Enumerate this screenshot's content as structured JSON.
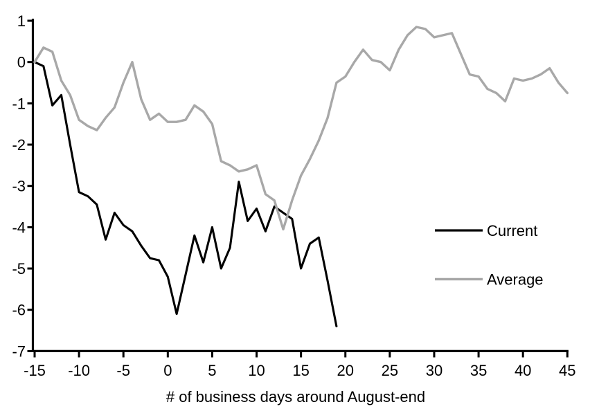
{
  "chart_data": {
    "type": "line",
    "title": "",
    "xlabel": "# of business days around August-end",
    "ylabel": "",
    "xlim": [
      -15,
      45
    ],
    "ylim": [
      -7,
      1
    ],
    "xticks": [
      -15,
      -10,
      -5,
      0,
      5,
      10,
      15,
      20,
      25,
      30,
      35,
      40,
      45
    ],
    "yticks": [
      1,
      0,
      -1,
      -2,
      -3,
      -4,
      -5,
      -6,
      -7
    ],
    "grid": false,
    "legend_position": "middle-right",
    "colors": {
      "current": "#000000",
      "average": "#a8a8a8",
      "axis": "#000000",
      "background": "#ffffff"
    },
    "series": [
      {
        "name": "Current",
        "color_key": "current",
        "x": [
          -15,
          -14,
          -13,
          -12,
          -11,
          -10,
          -9,
          -8,
          -7,
          -6,
          -5,
          -4,
          -3,
          -2,
          -1,
          0,
          1,
          2,
          3,
          4,
          5,
          6,
          7,
          8,
          9,
          10,
          11,
          12,
          13,
          14,
          15,
          16,
          17,
          18,
          19
        ],
        "values": [
          0.0,
          -0.1,
          -1.05,
          -0.8,
          -2.0,
          -3.15,
          -3.25,
          -3.45,
          -4.3,
          -3.65,
          -3.95,
          -4.1,
          -4.45,
          -4.75,
          -4.8,
          -5.2,
          -6.1,
          -5.15,
          -4.2,
          -4.85,
          -4.0,
          -5.0,
          -4.5,
          -2.9,
          -3.85,
          -3.55,
          -4.1,
          -3.5,
          -3.65,
          -3.8,
          -5.0,
          -4.4,
          -4.25,
          -5.3,
          -6.4
        ]
      },
      {
        "name": "Average",
        "color_key": "average",
        "x": [
          -15,
          -14,
          -13,
          -12,
          -11,
          -10,
          -9,
          -8,
          -7,
          -6,
          -5,
          -4,
          -3,
          -2,
          -1,
          0,
          1,
          2,
          3,
          4,
          5,
          6,
          7,
          8,
          9,
          10,
          11,
          12,
          13,
          14,
          15,
          16,
          17,
          18,
          19,
          20,
          21,
          22,
          23,
          24,
          25,
          26,
          27,
          28,
          29,
          30,
          31,
          32,
          33,
          34,
          35,
          36,
          37,
          38,
          39,
          40,
          41,
          42,
          43,
          44,
          45
        ],
        "values": [
          0.0,
          0.35,
          0.25,
          -0.45,
          -0.8,
          -1.4,
          -1.55,
          -1.65,
          -1.35,
          -1.1,
          -0.5,
          0.0,
          -0.9,
          -1.4,
          -1.25,
          -1.45,
          -1.45,
          -1.4,
          -1.05,
          -1.2,
          -1.5,
          -2.4,
          -2.5,
          -2.65,
          -2.6,
          -2.5,
          -3.2,
          -3.35,
          -4.05,
          -3.35,
          -2.75,
          -2.35,
          -1.9,
          -1.35,
          -0.5,
          -0.35,
          0.0,
          0.3,
          0.05,
          0.0,
          -0.2,
          0.3,
          0.65,
          0.85,
          0.8,
          0.6,
          0.65,
          0.7,
          0.2,
          -0.3,
          -0.35,
          -0.65,
          -0.75,
          -0.95,
          -0.4,
          -0.45,
          -0.4,
          -0.3,
          -0.15,
          -0.5,
          -0.75
        ]
      }
    ],
    "legend": {
      "current_label": "Current",
      "average_label": "Average"
    }
  }
}
